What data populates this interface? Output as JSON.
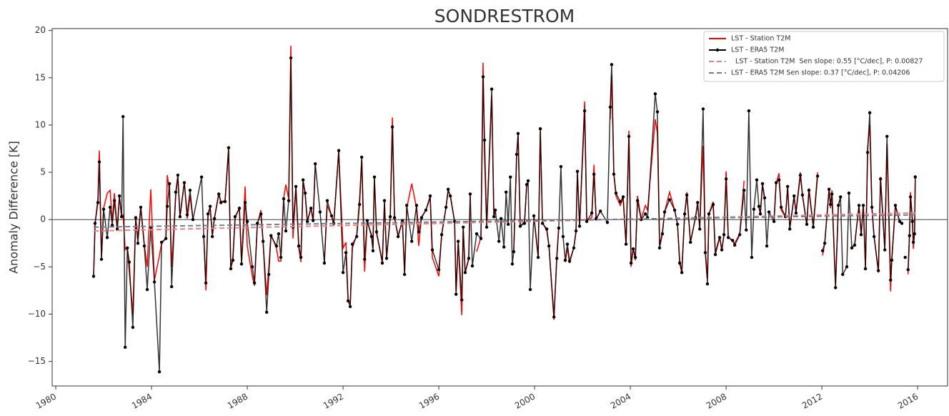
{
  "chart_data": {
    "type": "line",
    "title": "SONDRESTROM",
    "y_label": "Anomaly Difference [K]",
    "xlim": [
      1979.85,
      2017.25
    ],
    "ylim": [
      -17.6,
      20.2
    ],
    "xticks": [
      1980,
      1984,
      1988,
      1992,
      1996,
      2000,
      2004,
      2008,
      2012,
      2016
    ],
    "yticks": [
      {
        "value": -15,
        "label": "−15"
      },
      {
        "value": -10,
        "label": "−10"
      },
      {
        "value": -5,
        "label": "−5"
      },
      0,
      5,
      10,
      15,
      20
    ],
    "hline": 0,
    "legend": "upper right",
    "x": [
      1981.58,
      1981.64,
      1981.76,
      1981.82,
      1981.91,
      1982.0,
      1982.15,
      1982.27,
      1982.36,
      1982.45,
      1982.57,
      1982.66,
      1982.75,
      1982.81,
      1982.9,
      1982.99,
      1983.07,
      1983.22,
      1983.34,
      1983.43,
      1983.55,
      1983.7,
      1983.82,
      1983.97,
      1984.12,
      1984.33,
      1984.42,
      1984.6,
      1984.66,
      1984.75,
      1984.84,
      1985.01,
      1985.1,
      1985.19,
      1985.37,
      1985.49,
      1985.61,
      1985.73,
      1986.09,
      1986.18,
      1986.27,
      1986.36,
      1986.45,
      1986.54,
      1986.63,
      1986.81,
      1986.9,
      1987.07,
      1987.22,
      1987.31,
      1987.4,
      1987.49,
      1987.67,
      1987.76,
      1987.91,
      1988.0,
      1988.21,
      1988.3,
      1988.42,
      1988.57,
      1988.66,
      1988.81,
      1988.9,
      1988.99,
      1989.22,
      1989.31,
      1989.4,
      1989.52,
      1989.61,
      1989.73,
      1989.82,
      1989.91,
      1990.03,
      1990.15,
      1990.24,
      1990.33,
      1990.42,
      1990.51,
      1990.66,
      1990.75,
      1990.84,
      1991.04,
      1991.22,
      1991.34,
      1991.52,
      1991.61,
      1991.82,
      1992.0,
      1992.12,
      1992.21,
      1992.3,
      1992.39,
      1992.57,
      1992.69,
      1992.78,
      1992.9,
      1993.01,
      1993.19,
      1993.25,
      1993.31,
      1993.4,
      1993.64,
      1993.73,
      1993.82,
      1993.97,
      1994.06,
      1994.15,
      1994.3,
      1994.48,
      1994.57,
      1994.66,
      1994.87,
      1995.07,
      1995.16,
      1995.28,
      1995.46,
      1995.64,
      1995.73,
      1996.0,
      1996.12,
      1996.3,
      1996.39,
      1996.48,
      1996.66,
      1996.72,
      1996.81,
      1996.96,
      1997.02,
      1997.1,
      1997.25,
      1997.31,
      1997.4,
      1997.58,
      1997.76,
      1997.85,
      1997.91,
      1998.0,
      1998.21,
      1998.3,
      1998.36,
      1998.51,
      1998.6,
      1998.72,
      1998.81,
      1998.9,
      1998.99,
      1999.07,
      1999.13,
      1999.25,
      1999.31,
      1999.4,
      1999.58,
      1999.67,
      1999.73,
      1999.82,
      1999.97,
      2000.15,
      2000.24,
      2000.33,
      2000.51,
      2000.6,
      2000.81,
      2000.93,
      2001.01,
      2001.1,
      2001.19,
      2001.28,
      2001.37,
      2001.46,
      2001.64,
      2001.73,
      2001.79,
      2001.88,
      2002.09,
      2002.18,
      2002.39,
      2002.48,
      2002.57,
      2002.75,
      2003.04,
      2003.16,
      2003.22,
      2003.31,
      2003.4,
      2003.58,
      2003.7,
      2003.82,
      2003.94,
      2004.03,
      2004.12,
      2004.21,
      2004.3,
      2004.45,
      2004.63,
      2004.72,
      2005.04,
      2005.13,
      2005.22,
      2005.34,
      2005.43,
      2005.64,
      2005.85,
      2005.97,
      2006.06,
      2006.15,
      2006.27,
      2006.36,
      2006.51,
      2006.72,
      2006.81,
      2006.9,
      2007.04,
      2007.13,
      2007.22,
      2007.28,
      2007.46,
      2007.55,
      2007.73,
      2007.82,
      2007.91,
      2008.0,
      2008.09,
      2008.27,
      2008.36,
      2008.57,
      2008.75,
      2008.84,
      2008.95,
      2009.07,
      2009.16,
      2009.28,
      2009.37,
      2009.43,
      2009.52,
      2009.61,
      2009.7,
      2009.79,
      2010.0,
      2010.09,
      2010.21,
      2010.3,
      2010.48,
      2010.57,
      2010.66,
      2010.84,
      2010.92,
      2011.1,
      2011.19,
      2011.37,
      2011.46,
      2011.64,
      2011.82,
      2011.94,
      2012.03,
      2012.12,
      2012.3,
      2012.36,
      2012.42,
      2012.57,
      2012.69,
      2012.78,
      2012.87,
      2013.04,
      2013.13,
      2013.25,
      2013.37,
      2013.55,
      2013.64,
      2013.73,
      2013.82,
      2013.91,
      2014.0,
      2014.09,
      2014.18,
      2014.36,
      2014.45,
      2014.63,
      2014.72,
      2014.87,
      2014.92,
      2015.07,
      2015.25,
      2015.34,
      2015.4,
      2015.48,
      2015.52,
      2015.6,
      2015.66,
      2015.7,
      2015.78,
      2015.82,
      2015.87,
      2015.9
    ],
    "series": [
      {
        "name": "LST - Station T2M",
        "color": "#ff0000",
        "marker": false,
        "values": [
          -6,
          -0.5,
          2.2,
          7.3,
          -4.0,
          1.2,
          2.8,
          3.1,
          -0.2,
          2.8,
          -1.2,
          2.5,
          0.3,
          0.5,
          -3.2,
          -3.0,
          -5.5,
          -10.0,
          0.2,
          -2.0,
          1.4,
          -2.7,
          -5.0,
          3.2,
          -6.4,
          -3.8,
          -2.5,
          -2.0,
          4.7,
          3.0,
          -5.0,
          2.5,
          4.5,
          0.3,
          4.0,
          0.1,
          2.5,
          0.0,
          null,
          -1.5,
          -7.5,
          0.5,
          1.2,
          -1.5,
          0.2,
          2.8,
          1.9,
          2.0,
          7.4,
          -5.0,
          -4.0,
          0.2,
          1.2,
          -4.5,
          3.5,
          -2.8,
          -6.0,
          -7.0,
          -0.5,
          1.0,
          -2.5,
          -8.0,
          -5.0,
          -1.6,
          -3.0,
          -4.4,
          -4.4,
          2.3,
          3.7,
          2.2,
          18.4,
          -2.0,
          3.4,
          -3.0,
          -4.5,
          4.0,
          2.6,
          -0.2,
          1.3,
          -0.2,
          5.9,
          null,
          -4.5,
          1.5,
          0.4,
          -0.6,
          7.2,
          -3.0,
          -2.4,
          -8.4,
          -9.0,
          -3.0,
          -1.6,
          2.2,
          6.4,
          -5.5,
          -0.2,
          -1.6,
          -3.0,
          4.4,
          -1.5,
          -4.4,
          1.8,
          -4.0,
          0.2,
          10.8,
          0.2,
          -1.7,
          -0.2,
          -5.7,
          1.2,
          3.8,
          1.2,
          -2.8,
          0.3,
          1.0,
          2.3,
          -4.0,
          -6.0,
          -1.5,
          1.2,
          3.0,
          2.6,
          -0.3,
          -7.6,
          -2.4,
          -10.1,
          -0.8,
          -5.6,
          -4.2,
          2.5,
          null,
          -3.4,
          -1.9,
          16.6,
          6.5,
          -0.9,
          13.0,
          0.3,
          0.8,
          null,
          null,
          null,
          null,
          null,
          null,
          null,
          -3.5,
          6.8,
          9.0,
          -0.7,
          -0.2,
          3.6,
          null,
          null,
          0.3,
          -3.9,
          9.4,
          -0.3,
          -1.2,
          -2.8,
          -10.6,
          -3.8,
          -0.8,
          null,
          null,
          -4.5,
          -3.0,
          -4.6,
          -2.9,
          -1.4,
          5.0,
          -0.8,
          12.5,
          -0.1,
          0.2,
          5.8,
          0.0,
          0.9,
          null,
          10.6,
          15.3,
          4.8,
          2.5,
          1.5,
          2.3,
          -2.7,
          9.4,
          -5.0,
          -3.0,
          -4.3,
          2.5,
          0.1,
          1.5,
          1.0,
          10.6,
          9.2,
          -2.7,
          -1.3,
          0.8,
          2.9,
          1.0,
          -0.5,
          -4.3,
          -5.5,
          0.6,
          2.9,
          -2.4,
          0.2,
          1.7,
          -0.9,
          7.8,
          -3.3,
          -6.2,
          0.6,
          1.9,
          -3.5,
          -1.8,
          -3.3,
          -1.6,
          5.1,
          -1.8,
          -2.3,
          -2.5,
          -1.5,
          4.1,
          null,
          null,
          null,
          null,
          null,
          1.3,
          0.6,
          3.6,
          2.2,
          null,
          null,
          -0.3,
          3.8,
          4.9,
          1.0,
          0.3,
          3.5,
          -0.9,
          2.4,
          0.8,
          5.0,
          2.5,
          -0.6,
          3.3,
          -0.7,
          5.0,
          null,
          -3.8,
          -2.5,
          3.3,
          1.2,
          3.1,
          -7.0,
          1.5,
          2.4,
          null,
          null,
          null,
          -3.0,
          -2.6,
          1.4,
          -1.6,
          1.6,
          -5.1,
          7.6,
          10.0,
          1.2,
          -1.7,
          -5.6,
          4.5,
          -3.2,
          8.0,
          -7.6,
          -4.2,
          1.5,
          -0.3,
          -0.4,
          null,
          null,
          null,
          -5.8,
          -1.6,
          2.9,
          -0.1,
          -3.1,
          -1.4,
          4.7
        ]
      },
      {
        "name": "LST - ERA5 T2M",
        "color": "#000000",
        "marker": true,
        "values": [
          -6,
          -0.4,
          1.8,
          6.1,
          -4.2,
          1.1,
          -1.9,
          1.3,
          -0.6,
          2.0,
          -1.0,
          2.5,
          0.3,
          10.9,
          -13.5,
          -3.0,
          -4.5,
          -11.4,
          0.2,
          -2.5,
          1.3,
          -2.8,
          -7.4,
          -0.8,
          -6.6,
          -16.1,
          -2.4,
          -2.0,
          1.4,
          3.8,
          -7.1,
          2.9,
          4.7,
          0.3,
          3.9,
          0.5,
          3.1,
          0.0,
          4.5,
          -1.8,
          -6.7,
          0.6,
          1.4,
          -1.8,
          0.1,
          2.7,
          1.8,
          1.9,
          7.6,
          -5.2,
          -4.3,
          0.3,
          1.2,
          -4.7,
          1.8,
          -0.2,
          -5.0,
          -6.7,
          -0.4,
          0.6,
          -2.3,
          -9.8,
          -5.8,
          -1.7,
          -2.8,
          -1.5,
          -4.0,
          2.2,
          -1.2,
          2.0,
          17.1,
          -0.8,
          3.5,
          -2.8,
          -4.0,
          4.2,
          2.8,
          -0.2,
          1.2,
          -0.1,
          5.9,
          0.8,
          -4.6,
          2.0,
          0.4,
          -0.4,
          7.3,
          -5.6,
          -3.5,
          -8.6,
          -9.2,
          -2.6,
          -1.8,
          1.6,
          6.6,
          -4.2,
          -0.1,
          -1.8,
          -3.3,
          4.5,
          -1.3,
          -4.6,
          2.0,
          -4.1,
          0.3,
          9.8,
          0.2,
          -1.8,
          -0.1,
          -5.8,
          1.5,
          -2.3,
          1.5,
          -1.3,
          0.2,
          1.0,
          2.5,
          -3.2,
          -5.3,
          -1.6,
          1.3,
          3.2,
          2.5,
          -0.2,
          -7.9,
          -2.3,
          -8.5,
          -0.8,
          -5.6,
          -4.1,
          2.7,
          -4.9,
          -1.5,
          -2.0,
          15.1,
          8.4,
          -0.8,
          13.8,
          0.3,
          1.0,
          -2.3,
          0.1,
          -2.9,
          2.9,
          -0.5,
          4.5,
          -4.7,
          -3.4,
          6.9,
          9.1,
          -0.7,
          -0.4,
          3.7,
          4.1,
          -7.4,
          0.4,
          -4.0,
          9.6,
          -0.4,
          -1.0,
          -2.8,
          -10.3,
          -4.1,
          -0.9,
          5.6,
          -1.8,
          -4.3,
          -2.6,
          -4.4,
          -3.0,
          -1.2,
          5.1,
          -0.7,
          11.5,
          -0.2,
          0.7,
          4.8,
          0.1,
          0.9,
          -0.3,
          11.9,
          16.4,
          4.8,
          2.8,
          1.9,
          2.4,
          -2.6,
          8.8,
          -4.6,
          -3.1,
          -4.0,
          2.0,
          0.0,
          0.6,
          0.2,
          13.3,
          11.4,
          -3.0,
          -1.5,
          0.8,
          2.1,
          1.0,
          -0.5,
          -4.6,
          -5.6,
          0.6,
          2.6,
          -2.4,
          0.2,
          1.8,
          -1.0,
          11.7,
          -3.5,
          -6.8,
          0.6,
          1.6,
          -3.7,
          -1.9,
          -3.2,
          -1.6,
          4.3,
          -1.9,
          -2.2,
          -2.7,
          -1.6,
          3.1,
          -1.1,
          11.5,
          -4.0,
          1.1,
          4.2,
          1.4,
          0.6,
          3.8,
          2.3,
          -2.8,
          0.8,
          -0.2,
          3.9,
          4.2,
          1.3,
          0.3,
          3.5,
          -1.0,
          2.5,
          0.7,
          4.7,
          2.6,
          -0.5,
          3.1,
          -0.8,
          4.6,
          null,
          -3.3,
          -2.5,
          3.2,
          1.6,
          2.7,
          -7.2,
          1.5,
          2.4,
          -5.8,
          -5.0,
          2.8,
          -3.0,
          -2.7,
          1.5,
          -1.6,
          1.5,
          -5.2,
          7.1,
          11.3,
          1.3,
          -1.8,
          -5.4,
          4.3,
          -3.2,
          8.8,
          -6.4,
          -4.3,
          1.5,
          -0.2,
          -0.4,
          null,
          -4.0,
          null,
          -5.3,
          -1.7,
          2.4,
          -0.2,
          -2.4,
          -1.5,
          4.5
        ]
      },
      {
        "name": "  LST - Station T2M  Sen slope: 0.55 [°C/dec], P: 0.00827",
        "color": "#f08080",
        "dashed": true,
        "x": [
          1981.58,
          2015.9
        ],
        "values": [
          -1.2,
          0.7
        ]
      },
      {
        "name": "LST - ERA5 T2M Sen slope: 0.37 [°C/dec], P: 0.04206",
        "color": "#708090",
        "dashed": true,
        "x": [
          1981.58,
          2015.9
        ],
        "values": [
          -0.8,
          0.5
        ]
      }
    ]
  }
}
